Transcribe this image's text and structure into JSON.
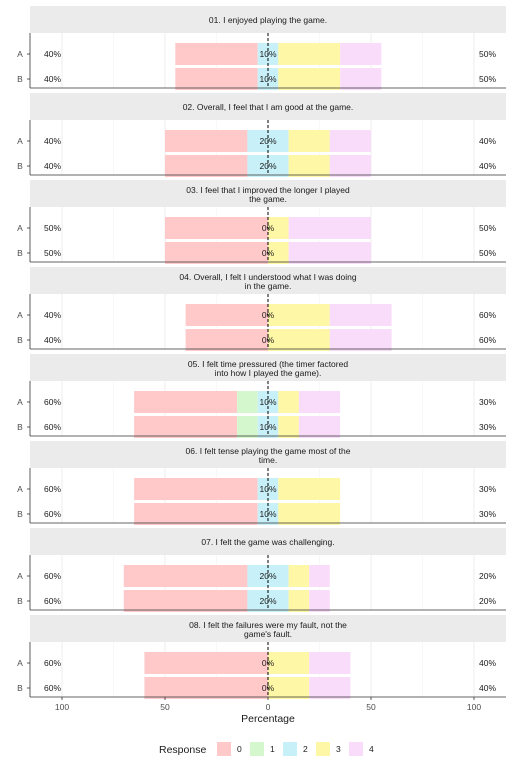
{
  "chart_data": {
    "type": "bar",
    "subtype": "diverging-stacked-likert",
    "xlabel": "Percentage",
    "xlim": [
      -100,
      100
    ],
    "x_ticks": [
      "100",
      "50",
      "0",
      "50",
      "100"
    ],
    "center_line": "dashed at 0",
    "grid": true,
    "legend": {
      "title": "Response",
      "position": "bottom",
      "levels": [
        "0",
        "1",
        "2",
        "3",
        "4"
      ],
      "colors": [
        "#ffc9ca",
        "#d5f7cd",
        "#c8f0f8",
        "#fdf7a6",
        "#f9dcfa"
      ]
    },
    "panels": [
      {
        "title_lines": [
          "01. I enjoyed playing the game."
        ],
        "rows": [
          {
            "label": "A",
            "left_pct": "40%",
            "center_pct": "10%",
            "right_pct": "50%",
            "values": [
              40,
              0,
              10,
              30,
              20
            ]
          },
          {
            "label": "B",
            "left_pct": "40%",
            "center_pct": "10%",
            "right_pct": "50%",
            "values": [
              40,
              0,
              10,
              30,
              20
            ]
          }
        ]
      },
      {
        "title_lines": [
          "02. Overall, I feel that I am good at the game."
        ],
        "rows": [
          {
            "label": "A",
            "left_pct": "40%",
            "center_pct": "20%",
            "right_pct": "40%",
            "values": [
              40,
              0,
              20,
              20,
              20
            ]
          },
          {
            "label": "B",
            "left_pct": "40%",
            "center_pct": "20%",
            "right_pct": "40%",
            "values": [
              40,
              0,
              20,
              20,
              20
            ]
          }
        ]
      },
      {
        "title_lines": [
          "03. I feel that I improved the longer I played",
          "the game."
        ],
        "rows": [
          {
            "label": "A",
            "left_pct": "50%",
            "center_pct": "0%",
            "right_pct": "50%",
            "values": [
              50,
              0,
              0,
              10,
              40
            ]
          },
          {
            "label": "B",
            "left_pct": "50%",
            "center_pct": "0%",
            "right_pct": "50%",
            "values": [
              50,
              0,
              0,
              10,
              40
            ]
          }
        ]
      },
      {
        "title_lines": [
          "04. Overall, I felt I understood what I was doing",
          "in the game."
        ],
        "rows": [
          {
            "label": "A",
            "left_pct": "40%",
            "center_pct": "0%",
            "right_pct": "60%",
            "values": [
              40,
              0,
              0,
              30,
              30
            ]
          },
          {
            "label": "B",
            "left_pct": "40%",
            "center_pct": "0%",
            "right_pct": "60%",
            "values": [
              40,
              0,
              0,
              30,
              30
            ]
          }
        ]
      },
      {
        "title_lines": [
          "05. I felt time pressured (the timer factored",
          "into how I played the game)."
        ],
        "rows": [
          {
            "label": "A",
            "left_pct": "60%",
            "center_pct": "10%",
            "right_pct": "30%",
            "values": [
              50,
              10,
              10,
              10,
              20
            ]
          },
          {
            "label": "B",
            "left_pct": "60%",
            "center_pct": "10%",
            "right_pct": "30%",
            "values": [
              50,
              10,
              10,
              10,
              20
            ]
          }
        ]
      },
      {
        "title_lines": [
          "06. I felt tense playing the game most of the",
          "time."
        ],
        "rows": [
          {
            "label": "A",
            "left_pct": "60%",
            "center_pct": "10%",
            "right_pct": "30%",
            "values": [
              60,
              0,
              10,
              30,
              0
            ]
          },
          {
            "label": "B",
            "left_pct": "60%",
            "center_pct": "10%",
            "right_pct": "30%",
            "values": [
              60,
              0,
              10,
              30,
              0
            ]
          }
        ]
      },
      {
        "title_lines": [
          "07. I felt the game was challenging."
        ],
        "rows": [
          {
            "label": "A",
            "left_pct": "60%",
            "center_pct": "20%",
            "right_pct": "20%",
            "values": [
              60,
              0,
              20,
              10,
              10
            ]
          },
          {
            "label": "B",
            "left_pct": "60%",
            "center_pct": "20%",
            "right_pct": "20%",
            "values": [
              60,
              0,
              20,
              10,
              10
            ]
          }
        ]
      },
      {
        "title_lines": [
          "08. I felt the failures were my fault, not the",
          "game's fault."
        ],
        "rows": [
          {
            "label": "A",
            "left_pct": "60%",
            "center_pct": "0%",
            "right_pct": "40%",
            "values": [
              60,
              0,
              0,
              20,
              20
            ]
          },
          {
            "label": "B",
            "left_pct": "60%",
            "center_pct": "0%",
            "right_pct": "40%",
            "values": [
              60,
              0,
              0,
              20,
              20
            ]
          }
        ]
      }
    ]
  }
}
